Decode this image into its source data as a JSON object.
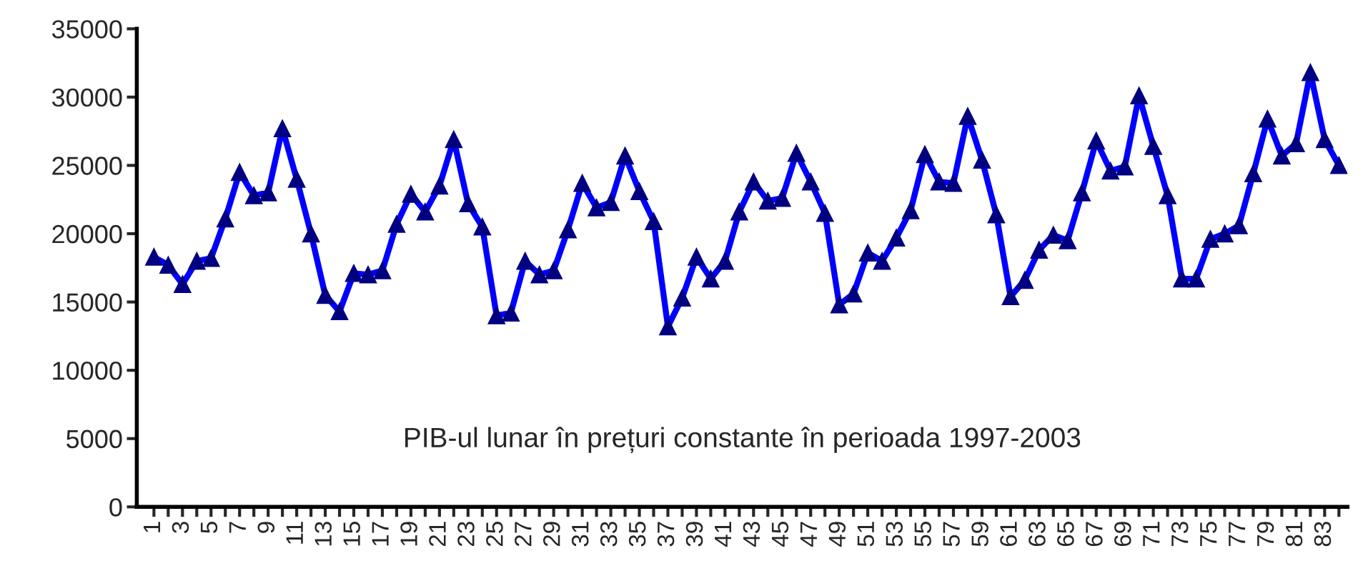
{
  "chart_data": {
    "type": "line",
    "categories": [
      "1",
      null,
      "3",
      null,
      "5",
      null,
      "7",
      null,
      "9",
      null,
      "11",
      null,
      "13",
      null,
      "15",
      null,
      "17",
      null,
      "19",
      null,
      "21",
      null,
      "23",
      null,
      "25",
      null,
      "27",
      null,
      "29",
      null,
      "31",
      null,
      "33",
      null,
      "35",
      null,
      "37",
      null,
      "39",
      null,
      "41",
      null,
      "43",
      null,
      "45",
      null,
      "47",
      null,
      "49",
      null,
      "51",
      null,
      "53",
      null,
      "55",
      null,
      "57",
      null,
      "59",
      null,
      "61",
      null,
      "63",
      null,
      "65",
      null,
      "67",
      null,
      "69",
      null,
      "71",
      null,
      "73",
      null,
      "75",
      null,
      "77",
      null,
      "79",
      null,
      "81",
      null,
      "83",
      null
    ],
    "series": [
      {
        "color": "#0000ff",
        "values": [
          18300,
          17700,
          16300,
          18000,
          18200,
          21100,
          24500,
          22800,
          23000,
          27700,
          24000,
          20000,
          15500,
          14300,
          17100,
          17000,
          17300,
          20700,
          22900,
          21600,
          23500,
          26900,
          22200,
          20500,
          14000,
          14200,
          18000,
          17000,
          17300,
          20300,
          23700,
          21900,
          22300,
          25700,
          23100,
          20900,
          13200,
          15300,
          18300,
          16700,
          18000,
          21600,
          23800,
          22400,
          22600,
          25900,
          23800,
          21500,
          14800,
          15600,
          18600,
          18000,
          19700,
          21700,
          25800,
          23800,
          23700,
          28600,
          25400,
          21400,
          15400,
          16600,
          18800,
          19900,
          19500,
          23000,
          26800,
          24600,
          24900,
          30100,
          26400,
          22800,
          16700,
          16700,
          19600,
          20000,
          20600,
          24400,
          28400,
          25700,
          26600,
          31800,
          26900,
          25000
        ]
      }
    ],
    "ylim": [
      0,
      35000
    ],
    "yticks": [
      0,
      5000,
      10000,
      15000,
      20000,
      25000,
      30000,
      35000
    ],
    "marker": "triangle",
    "line_style": "solid",
    "grid": false,
    "legend": false,
    "annotations": [
      "PIB-ul lunar în prețuri constante în perioada 1997-2003"
    ]
  }
}
